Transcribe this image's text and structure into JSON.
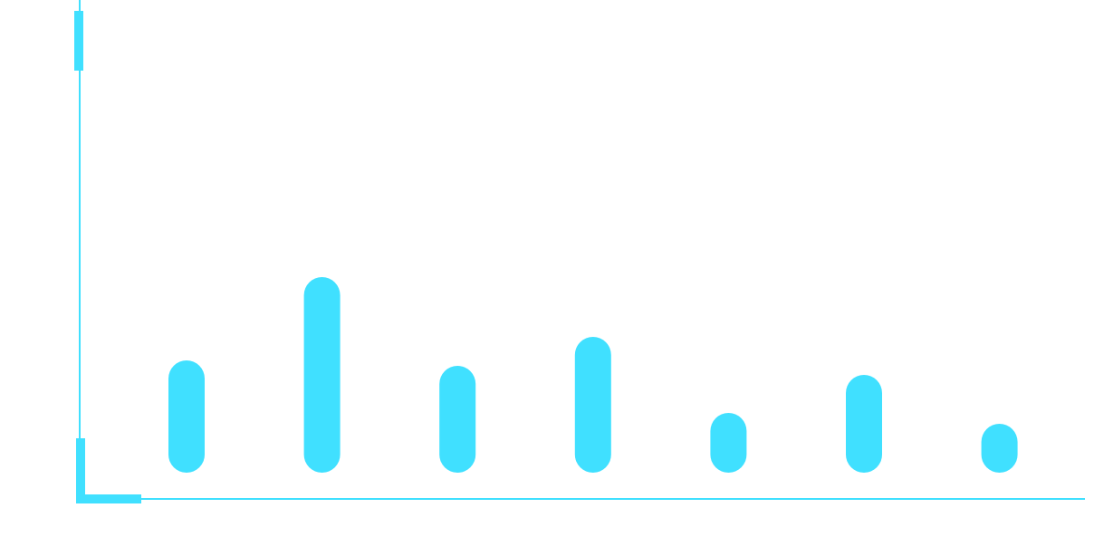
{
  "colors": {
    "accent": "#40E0FF",
    "background": "#FFFFFF"
  },
  "chart_data": {
    "type": "bar",
    "categories": [
      "",
      "",
      "",
      "",
      "",
      "",
      ""
    ],
    "values": [
      124,
      216,
      118,
      150,
      66,
      108,
      54
    ],
    "title": "",
    "xlabel": "",
    "ylabel": "",
    "grid": false,
    "legend": "none"
  }
}
